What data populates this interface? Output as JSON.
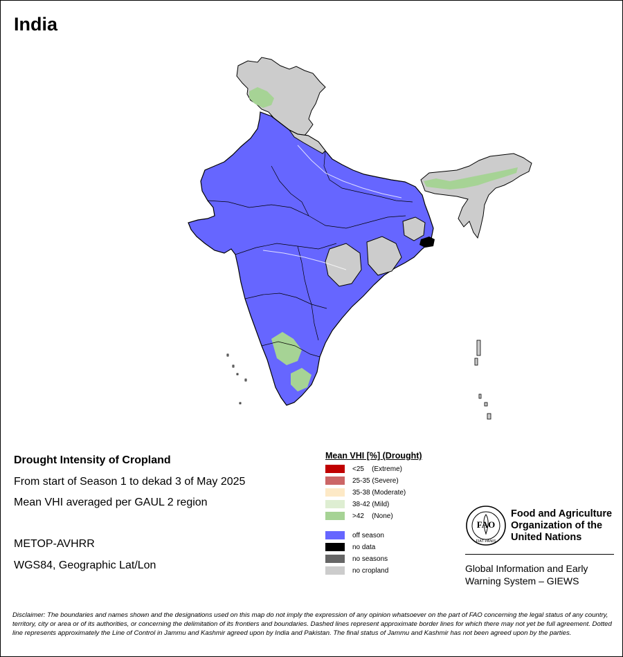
{
  "header": {
    "country": "India"
  },
  "map_info": {
    "title": "Drought Intensity of Cropland",
    "period": "From start of Season 1 to dekad 3 of May 2025",
    "method": "Mean VHI averaged per GAUL 2 region",
    "sensor": "METOP-AVHRR",
    "projection": "WGS84, Geographic Lat/Lon"
  },
  "legend": {
    "title": "Mean VHI [%] (Drought)",
    "classes": [
      {
        "label": "<25    (Extreme)",
        "color": "#c00000"
      },
      {
        "label": "25-35 (Severe)",
        "color": "#cc6666"
      },
      {
        "label": "35-38 (Moderate)",
        "color": "#fde9c6"
      },
      {
        "label": "38-42 (Mild)",
        "color": "#deeed2"
      },
      {
        "label": ">42    (None)",
        "color": "#a6d395"
      }
    ],
    "other": [
      {
        "label": "off season",
        "color": "#6666ff"
      },
      {
        "label": "no data",
        "color": "#000000"
      },
      {
        "label": "no seasons",
        "color": "#666666"
      },
      {
        "label": "no cropland",
        "color": "#cccccc"
      }
    ]
  },
  "fao": {
    "logo_letters": "FAO",
    "motto": "FIAT PANIS",
    "name_lines": [
      "Food and Agriculture",
      "Organization of the",
      "United Nations"
    ],
    "giews_lines": [
      "Global Information and Early",
      "Warning System – GIEWS"
    ]
  },
  "disclaimer": "Disclaimer: The boundaries and names shown and the designations used on this map do not imply the expression of any opinion whatsoever on the part of FAO concerning the legal status of any country, territory, city or area or of its authorities, or concerning the delimitation of its frontiers and boundaries. Dashed lines represent approximate border lines for which there may not yet be full agreement. Dotted line represents approximately the Line of Control in Jammu and Kashmir agreed upon by India and Pakistan. The final status of Jammu and Kashmir has not been agreed upon by the parties.",
  "colors": {
    "off_season": "#6666ff",
    "no_cropland": "#cccccc",
    "none_drought": "#a6d395",
    "no_data": "#000000",
    "border": "#000000"
  }
}
